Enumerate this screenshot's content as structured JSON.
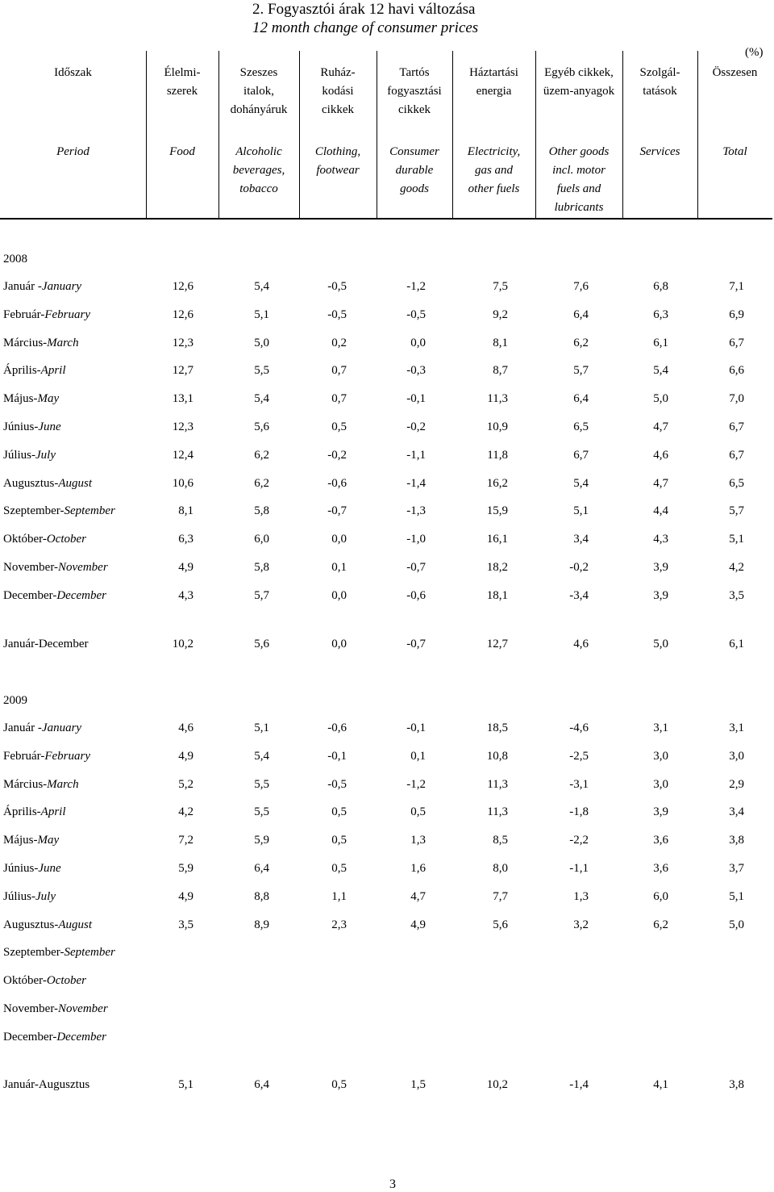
{
  "header": {
    "title": "2. Fogyasztói árak 12 havi változása",
    "subtitle": "12 month change of consumer prices",
    "unit": "(%)"
  },
  "columns": [
    {
      "hu": "Időszak",
      "en": "Period"
    },
    {
      "hu": "Élelmi-\nszerek",
      "en": "Food"
    },
    {
      "hu": "Szeszes\nitalok,\ndohányáruk",
      "en": "Alcoholic\nbeverages,\ntobacco"
    },
    {
      "hu": "Ruház-\nkodási\ncikkek",
      "en": "Clothing,\nfootwear"
    },
    {
      "hu": "Tartós\nfogyasztási\ncikkek",
      "en": "Consumer\ndurable\ngoods"
    },
    {
      "hu": "Háztartási\nenergia",
      "en": "Electricity,\ngas and\nother fuels"
    },
    {
      "hu": "Egyéb cikkek,\nüzem-anyagok",
      "en": "Other goods\nincl. motor\nfuels and\nlubricants"
    },
    {
      "hu": "Szolgál-\ntatások",
      "en": "Services"
    },
    {
      "hu": "Összesen",
      "en": "Total"
    }
  ],
  "sections": [
    {
      "year": "2008",
      "rows": [
        {
          "hu": "Január -",
          "en": "January",
          "values": [
            "12,6",
            "5,4",
            "-0,5",
            "-1,2",
            "7,5",
            "7,6",
            "6,8",
            "7,1"
          ]
        },
        {
          "hu": "Február-",
          "en": "February",
          "values": [
            "12,6",
            "5,1",
            "-0,5",
            "-0,5",
            "9,2",
            "6,4",
            "6,3",
            "6,9"
          ]
        },
        {
          "hu": "Március-",
          "en": "March",
          "values": [
            "12,3",
            "5,0",
            "0,2",
            "0,0",
            "8,1",
            "6,2",
            "6,1",
            "6,7"
          ]
        },
        {
          "hu": "Április-",
          "en": "April",
          "values": [
            "12,7",
            "5,5",
            "0,7",
            "-0,3",
            "8,7",
            "5,7",
            "5,4",
            "6,6"
          ]
        },
        {
          "hu": "Május-",
          "en": "May",
          "values": [
            "13,1",
            "5,4",
            "0,7",
            "-0,1",
            "11,3",
            "6,4",
            "5,0",
            "7,0"
          ]
        },
        {
          "hu": "Június-",
          "en": "June",
          "values": [
            "12,3",
            "5,6",
            "0,5",
            "-0,2",
            "10,9",
            "6,5",
            "4,7",
            "6,7"
          ]
        },
        {
          "hu": "Július-",
          "en": "July",
          "values": [
            "12,4",
            "6,2",
            "-0,2",
            "-1,1",
            "11,8",
            "6,7",
            "4,6",
            "6,7"
          ]
        },
        {
          "hu": "Augusztus-",
          "en": "August",
          "values": [
            "10,6",
            "6,2",
            "-0,6",
            "-1,4",
            "16,2",
            "5,4",
            "4,7",
            "6,5"
          ]
        },
        {
          "hu": "Szeptember-",
          "en": "September",
          "values": [
            "8,1",
            "5,8",
            "-0,7",
            "-1,3",
            "15,9",
            "5,1",
            "4,4",
            "5,7"
          ]
        },
        {
          "hu": "Október-",
          "en": "October",
          "values": [
            "6,3",
            "6,0",
            "0,0",
            "-1,0",
            "16,1",
            "3,4",
            "4,3",
            "5,1"
          ]
        },
        {
          "hu": "November-",
          "en": "November",
          "values": [
            "4,9",
            "5,8",
            "0,1",
            "-0,7",
            "18,2",
            "-0,2",
            "3,9",
            "4,2"
          ]
        },
        {
          "hu": "December-",
          "en": "December",
          "values": [
            "4,3",
            "5,7",
            "0,0",
            "-0,6",
            "18,1",
            "-3,4",
            "3,9",
            "3,5"
          ]
        }
      ],
      "summary": {
        "label": "Január-December",
        "values": [
          "10,2",
          "5,6",
          "0,0",
          "-0,7",
          "12,7",
          "4,6",
          "5,0",
          "6,1"
        ]
      }
    },
    {
      "year": "2009",
      "rows": [
        {
          "hu": "Január -",
          "en": "January",
          "values": [
            "4,6",
            "5,1",
            "-0,6",
            "-0,1",
            "18,5",
            "-4,6",
            "3,1",
            "3,1"
          ]
        },
        {
          "hu": "Február-",
          "en": "February",
          "values": [
            "4,9",
            "5,4",
            "-0,1",
            "0,1",
            "10,8",
            "-2,5",
            "3,0",
            "3,0"
          ]
        },
        {
          "hu": "Március-",
          "en": "March",
          "values": [
            "5,2",
            "5,5",
            "-0,5",
            "-1,2",
            "11,3",
            "-3,1",
            "3,0",
            "2,9"
          ]
        },
        {
          "hu": "Április-",
          "en": "April",
          "values": [
            "4,2",
            "5,5",
            "0,5",
            "0,5",
            "11,3",
            "-1,8",
            "3,9",
            "3,4"
          ]
        },
        {
          "hu": "Május-",
          "en": "May",
          "values": [
            "7,2",
            "5,9",
            "0,5",
            "1,3",
            "8,5",
            "-2,2",
            "3,6",
            "3,8"
          ]
        },
        {
          "hu": "Június-",
          "en": "June",
          "values": [
            "5,9",
            "6,4",
            "0,5",
            "1,6",
            "8,0",
            "-1,1",
            "3,6",
            "3,7"
          ]
        },
        {
          "hu": "Július-",
          "en": "July",
          "values": [
            "4,9",
            "8,8",
            "1,1",
            "4,7",
            "7,7",
            "1,3",
            "6,0",
            "5,1"
          ]
        },
        {
          "hu": "Augusztus-",
          "en": "August",
          "values": [
            "3,5",
            "8,9",
            "2,3",
            "4,9",
            "5,6",
            "3,2",
            "6,2",
            "5,0"
          ]
        },
        {
          "hu": "Szeptember-",
          "en": "September",
          "values": []
        },
        {
          "hu": "Október-",
          "en": "October",
          "values": []
        },
        {
          "hu": "November-",
          "en": "November",
          "values": []
        },
        {
          "hu": "December-",
          "en": "December",
          "values": []
        }
      ],
      "summary": {
        "label": "Január-Augusztus",
        "values": [
          "5,1",
          "6,4",
          "0,5",
          "1,5",
          "10,2",
          "-1,4",
          "4,1",
          "3,8"
        ]
      }
    }
  ],
  "page_number": "3"
}
